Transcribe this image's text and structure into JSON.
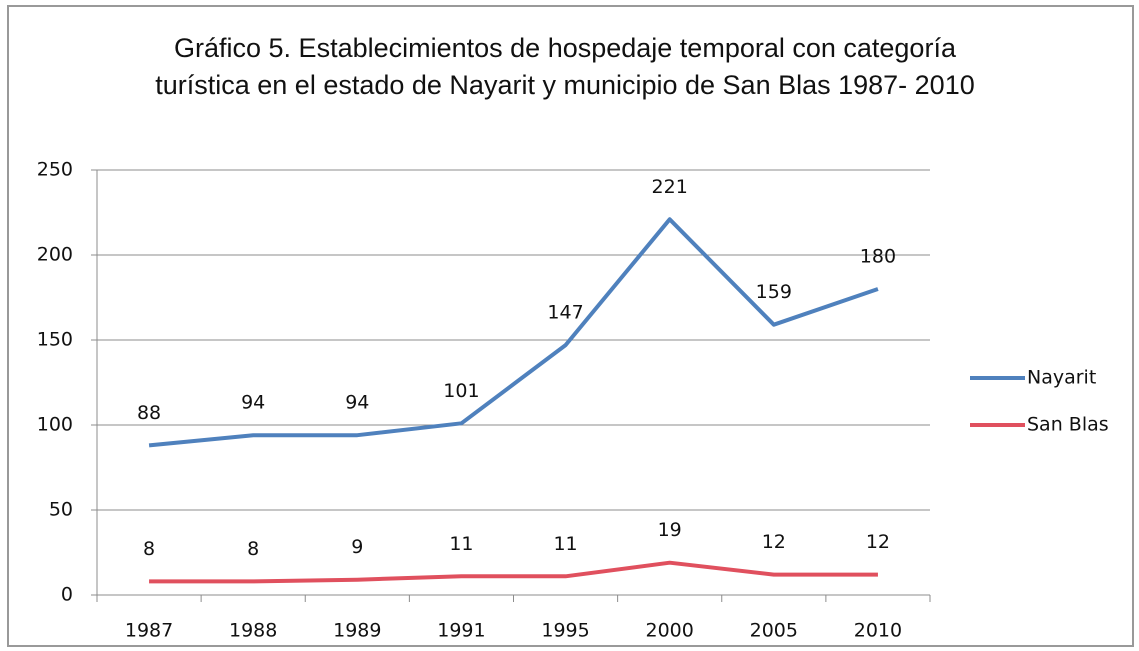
{
  "chart_data": {
    "type": "line",
    "title": "Gráfico 5. Establecimientos de hospedaje temporal con categoría turística en el estado de Nayarit y municipio de San Blas 1987- 2010",
    "categories": [
      "1987",
      "1988",
      "1989",
      "1991",
      "1995",
      "2000",
      "2005",
      "2010"
    ],
    "series": [
      {
        "name": "Nayarit",
        "color": "#4f81bd",
        "values": [
          88,
          94,
          94,
          101,
          147,
          221,
          159,
          180
        ]
      },
      {
        "name": "San Blas",
        "color": "#e0505e",
        "values": [
          8,
          8,
          9,
          11,
          11,
          19,
          12,
          12
        ]
      }
    ],
    "ylim": [
      0,
      250
    ],
    "yticks": [
      0,
      50,
      100,
      150,
      200,
      250
    ],
    "grid": true,
    "legend": "right"
  }
}
